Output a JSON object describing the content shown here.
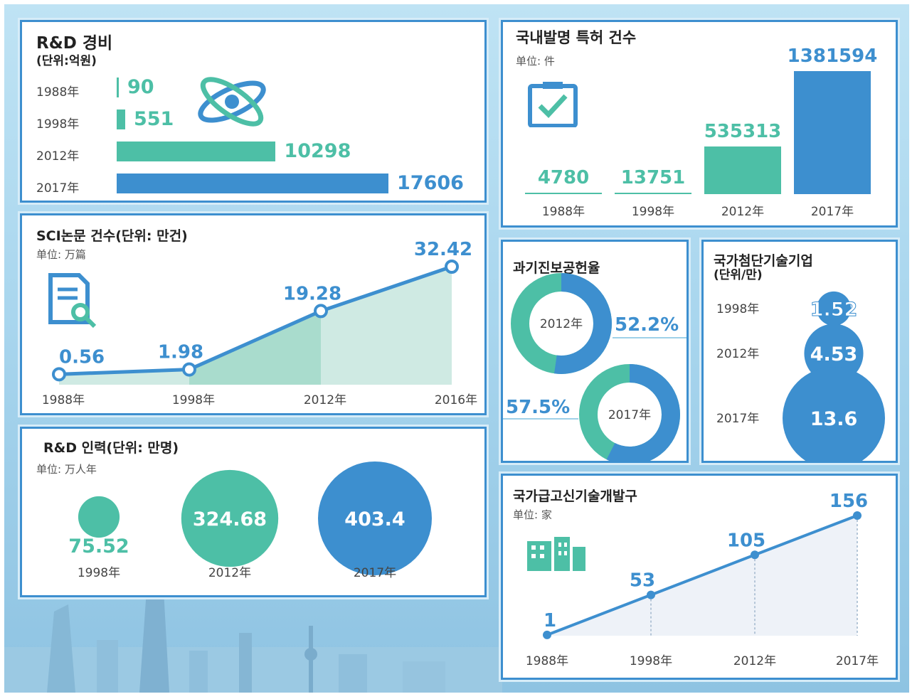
{
  "colors": {
    "teal": "#4dbfa6",
    "blue": "#3d8fcf",
    "light_teal": "#cfeae3",
    "mid_teal": "#a9dccd"
  },
  "rd_expense": {
    "title": "R&D 경비",
    "unit": "(단위:억원)",
    "rows": [
      {
        "year": "1988年",
        "value": "90"
      },
      {
        "year": "1998年",
        "value": "551"
      },
      {
        "year": "2012年",
        "value": "10298"
      },
      {
        "year": "2017年",
        "value": "17606"
      }
    ]
  },
  "patents": {
    "title": "국내발명 특허 건수",
    "unit": "单位: 件",
    "bars": [
      {
        "year": "1988年",
        "value": "4780"
      },
      {
        "year": "1998年",
        "value": "13751"
      },
      {
        "year": "2012年",
        "value": "535313"
      },
      {
        "year": "2017年",
        "value": "1381594"
      }
    ]
  },
  "sci": {
    "title": "SCI논문 건수(단위: 만건)",
    "unit": "单位: 万篇",
    "points": [
      {
        "year": "1988年",
        "value": "0.56"
      },
      {
        "year": "1998年",
        "value": "1.98"
      },
      {
        "year": "2012年",
        "value": "19.28"
      },
      {
        "year": "2016年",
        "value": "32.42"
      }
    ]
  },
  "progress": {
    "title": "과기진보공헌율",
    "donuts": [
      {
        "year": "2012年",
        "value": "52.2%"
      },
      {
        "year": "2017年",
        "value": "57.5%"
      }
    ]
  },
  "hightech": {
    "title": "국가첨단기술기업",
    "unit": "(단위/만)",
    "bubbles": [
      {
        "year": "1998年",
        "value": "1.52"
      },
      {
        "year": "2012年",
        "value": "4.53"
      },
      {
        "year": "2017年",
        "value": "13.6"
      }
    ]
  },
  "personnel": {
    "title": "R&D 인력(단위: 만명)",
    "unit": "单位: 万人年",
    "bubbles": [
      {
        "year": "1998年",
        "value": "75.52"
      },
      {
        "year": "2012年",
        "value": "324.68"
      },
      {
        "year": "2017年",
        "value": "403.4"
      }
    ]
  },
  "zones": {
    "title": "국가급고신기술개발구",
    "unit": "单位: 家",
    "points": [
      {
        "year": "1988年",
        "value": "1"
      },
      {
        "year": "1998年",
        "value": "53"
      },
      {
        "year": "2012年",
        "value": "105"
      },
      {
        "year": "2017年",
        "value": "156"
      }
    ]
  },
  "chart_data": [
    {
      "type": "bar",
      "title": "R&D 경비",
      "unit": "(단위:억원)",
      "categories": [
        "1988年",
        "1998年",
        "2012年",
        "2017年"
      ],
      "values": [
        90,
        551,
        10298,
        17606
      ],
      "orientation": "horizontal"
    },
    {
      "type": "bar",
      "title": "국내발명 특허 건수",
      "unit": "单位: 件",
      "categories": [
        "1988年",
        "1998年",
        "2012年",
        "2017年"
      ],
      "values": [
        4780,
        13751,
        535313,
        1381594
      ]
    },
    {
      "type": "area",
      "title": "SCI논문 건수(단위: 만건)",
      "unit": "单位: 万篇",
      "categories": [
        "1988年",
        "1998年",
        "2012年",
        "2016年"
      ],
      "values": [
        0.56,
        1.98,
        19.28,
        32.42
      ]
    },
    {
      "type": "pie",
      "title": "과기진보공헌율",
      "categories": [
        "2012年",
        "2017年"
      ],
      "values": [
        52.2,
        57.5
      ]
    },
    {
      "type": "scatter",
      "title": "국가첨단기술기업",
      "unit": "(단위/만)",
      "categories": [
        "1998年",
        "2012年",
        "2017年"
      ],
      "values": [
        1.52,
        4.53,
        13.6
      ]
    },
    {
      "type": "scatter",
      "title": "R&D 인력(단위: 만명)",
      "unit": "单位: 万人年",
      "categories": [
        "1998年",
        "2012年",
        "2017年"
      ],
      "values": [
        75.52,
        324.68,
        403.4
      ]
    },
    {
      "type": "line",
      "title": "국가급고신기술개발구",
      "unit": "单位: 家",
      "categories": [
        "1988年",
        "1998年",
        "2012年",
        "2017年"
      ],
      "values": [
        1,
        53,
        105,
        156
      ]
    }
  ]
}
